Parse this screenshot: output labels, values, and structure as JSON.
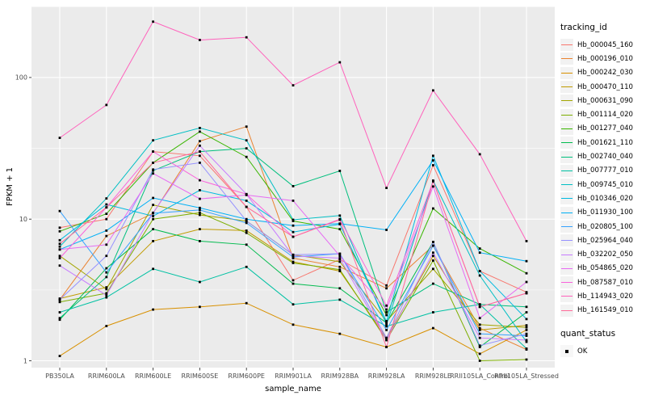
{
  "theme": {
    "background": "#FFFFFF",
    "panel_bg": "#EBEBEB",
    "grid_color": "#FFFFFF",
    "tick_label_color": "#4D4D4D",
    "axis_title_color": "#000000",
    "tick_mark_color": "#333333",
    "legend_key_bg": "#F2F2F2",
    "point_color": "#000000"
  },
  "chart_data": {
    "type": "line",
    "title": "",
    "xlabel": "sample_name",
    "ylabel": "FPKM + 1",
    "y_scale": "log10",
    "ylim": [
      0.9,
      310
    ],
    "grid": true,
    "legend_position": "right",
    "y_ticks": [
      {
        "value": 1,
        "label": "1"
      },
      {
        "value": 10,
        "label": "10"
      },
      {
        "value": 100,
        "label": "100"
      }
    ],
    "y_minor_ticks": [
      3.162,
      31.62,
      316.2
    ],
    "categories": [
      "PB350LA",
      "RRIM600LA",
      "RRIM600LE",
      "RRIM600SE",
      "RRIM600PE",
      "RRIM901LA",
      "RRIM928BA",
      "RRIM928LA",
      "RRIM928LE",
      "RRII105LA_Control",
      "RRII105LA_Stressed"
    ],
    "points": {
      "shape": "filled-square",
      "color": "#000000",
      "meaning": "quant_status OK"
    },
    "series": [
      {
        "name": "Hb_000045_160",
        "color": "#F8766D",
        "values": [
          8.7,
          10.0,
          30,
          28,
          12.2,
          3.7,
          5.2,
          3.4,
          24,
          4.3,
          3.05
        ]
      },
      {
        "name": "Hb_000196_010",
        "color": "#EA8331",
        "values": [
          2.7,
          7.6,
          11.0,
          35.5,
          45,
          5.3,
          4.6,
          3.25,
          6.5,
          1.7,
          1.2
        ]
      },
      {
        "name": "Hb_000242_030",
        "color": "#D89000",
        "values": [
          1.08,
          1.76,
          2.3,
          2.4,
          2.55,
          1.8,
          1.55,
          1.25,
          1.7,
          1.12,
          1.65
        ]
      },
      {
        "name": "Hb_000470_110",
        "color": "#C09B00",
        "values": [
          2.75,
          3.3,
          7.0,
          8.5,
          8.3,
          5.0,
          4.3,
          1.45,
          5.5,
          1.65,
          1.78
        ]
      },
      {
        "name": "Hb_000631_090",
        "color": "#A3A500",
        "values": [
          5.5,
          3.2,
          12.6,
          10.7,
          9.7,
          5.6,
          5.0,
          1.9,
          4.45,
          1.8,
          1.72
        ]
      },
      {
        "name": "Hb_001114_020",
        "color": "#7CAE00",
        "values": [
          2.6,
          3.0,
          10.0,
          11.1,
          8.0,
          4.9,
          4.4,
          1.4,
          5.1,
          1.0,
          1.02
        ]
      },
      {
        "name": "Hb_001277_040",
        "color": "#39B600",
        "values": [
          8.2,
          10.9,
          25,
          41.5,
          27.5,
          9.7,
          8.5,
          2.1,
          11.9,
          6.2,
          4.15
        ]
      },
      {
        "name": "Hb_001621_110",
        "color": "#00BB4E",
        "values": [
          1.95,
          4.5,
          8.5,
          7.0,
          6.6,
          3.5,
          3.25,
          1.85,
          6.9,
          1.25,
          2.2
        ]
      },
      {
        "name": "Hb_002740_040",
        "color": "#00BF7D",
        "values": [
          2.0,
          3.9,
          22,
          30,
          31.6,
          17.1,
          21.9,
          2.2,
          3.5,
          2.5,
          2.4
        ]
      },
      {
        "name": "Hb_007777_010",
        "color": "#00C1A3",
        "values": [
          2.2,
          2.8,
          4.45,
          3.6,
          4.6,
          2.5,
          2.7,
          1.75,
          2.2,
          2.5,
          1.22
        ]
      },
      {
        "name": "Hb_009745_010",
        "color": "#00BFC4",
        "values": [
          6.4,
          14.0,
          36,
          44,
          36,
          9.9,
          10.6,
          1.8,
          18.7,
          4.0,
          1.36
        ]
      },
      {
        "name": "Hb_010346_020",
        "color": "#00BAE0",
        "values": [
          7.1,
          12.7,
          10.5,
          16,
          13.5,
          8.1,
          9.2,
          1.9,
          28,
          4.3,
          1.97
        ]
      },
      {
        "name": "Hb_011930_100",
        "color": "#00B0F6",
        "values": [
          6.1,
          8.3,
          14.1,
          12.0,
          10.0,
          9.0,
          9.3,
          8.4,
          26,
          5.8,
          5.05
        ]
      },
      {
        "name": "Hb_020805_100",
        "color": "#35A2FF",
        "values": [
          11.4,
          4.2,
          11.0,
          11.6,
          9.4,
          5.4,
          5.7,
          1.65,
          6.5,
          1.55,
          1.5
        ]
      },
      {
        "name": "Hb_025964_040",
        "color": "#9590FF",
        "values": [
          2.7,
          5.5,
          22.4,
          25,
          9.7,
          5.6,
          5.7,
          1.45,
          6.9,
          1.28,
          1.55
        ]
      },
      {
        "name": "Hb_032202_050",
        "color": "#C77CFF",
        "values": [
          4.7,
          2.9,
          11.1,
          33,
          15,
          5.5,
          5.3,
          1.4,
          5.8,
          1.45,
          1.4
        ]
      },
      {
        "name": "Hb_054865_020",
        "color": "#E76BF3",
        "values": [
          6.1,
          6.6,
          21,
          13.9,
          14.8,
          13.5,
          5.5,
          2.3,
          17,
          2.0,
          3.6
        ]
      },
      {
        "name": "Hb_087587_010",
        "color": "#FA62DB",
        "values": [
          5.3,
          12.1,
          30,
          18.8,
          15,
          7.5,
          10.0,
          2.45,
          18.5,
          2.4,
          3.0
        ]
      },
      {
        "name": "Hb_114943_020",
        "color": "#FF62BC",
        "values": [
          37.5,
          64,
          248,
          184,
          192,
          88,
          128,
          16.6,
          81,
          28.7,
          7.0
        ]
      },
      {
        "name": "Hb_161549_010",
        "color": "#FF6A98",
        "values": [
          6.7,
          12.1,
          25,
          30,
          12.2,
          7.5,
          9.9,
          1.25,
          18.5,
          2.4,
          3.0
        ]
      }
    ],
    "legend": {
      "color_legend_title": "tracking_id",
      "shape_legend_title": "quant_status",
      "shape_legend_items": [
        {
          "label": "OK",
          "shape": "filled-square",
          "color": "#000000"
        }
      ]
    }
  }
}
